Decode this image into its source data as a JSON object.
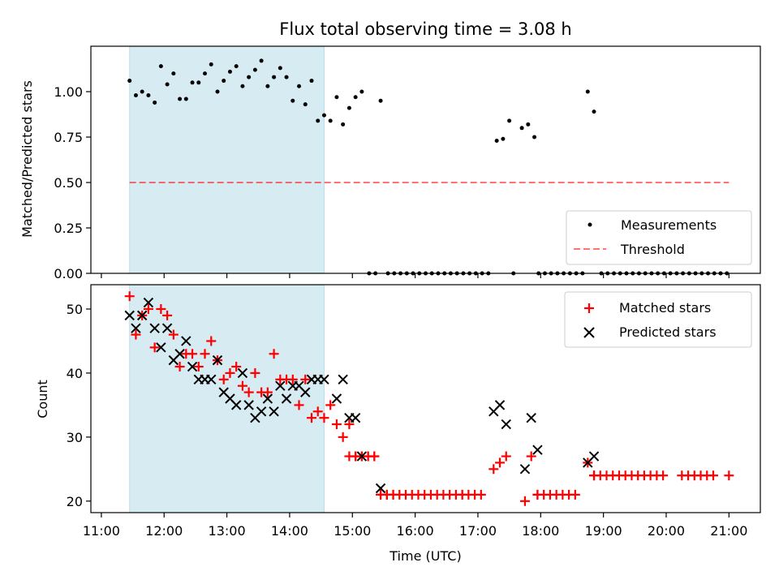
{
  "title": "Flux total observing time = 3.08 h",
  "colors": {
    "shade": "#add8e6",
    "threshold": "#ff0000",
    "matched": "#ff0000",
    "predicted": "#000000",
    "measurement": "#000000"
  },
  "chart_data": [
    {
      "type": "scatter",
      "ylabel": "Matched/Predicted stars",
      "xlabel": "",
      "xlim": [
        "10:50",
        "21:30"
      ],
      "ylim": [
        0,
        1.25
      ],
      "yticks": [
        0,
        0.25,
        0.5,
        0.75,
        1.0
      ],
      "ytick_labels": [
        "0.00",
        "0.25",
        "0.50",
        "0.75",
        "1.00"
      ],
      "shaded_span": [
        "11:27",
        "14:33"
      ],
      "legend": {
        "placement": "lower right",
        "entries": [
          "Measurements",
          "Threshold"
        ]
      },
      "threshold": {
        "name": "Threshold",
        "y": 0.5,
        "x_range": [
          "11:27",
          "21:00"
        ],
        "style": "dashed"
      },
      "series": [
        {
          "name": "Measurements",
          "marker": "dot",
          "points": [
            [
              "11:27",
              1.06
            ],
            [
              "11:33",
              0.98
            ],
            [
              "11:39",
              1.0
            ],
            [
              "11:45",
              0.98
            ],
            [
              "11:51",
              0.94
            ],
            [
              "11:57",
              1.14
            ],
            [
              "12:03",
              1.04
            ],
            [
              "12:09",
              1.1
            ],
            [
              "12:15",
              0.96
            ],
            [
              "12:21",
              0.96
            ],
            [
              "12:27",
              1.05
            ],
            [
              "12:33",
              1.05
            ],
            [
              "12:39",
              1.1
            ],
            [
              "12:45",
              1.15
            ],
            [
              "12:51",
              1.0
            ],
            [
              "12:57",
              1.06
            ],
            [
              "13:03",
              1.11
            ],
            [
              "13:09",
              1.14
            ],
            [
              "13:15",
              1.03
            ],
            [
              "13:21",
              1.08
            ],
            [
              "13:27",
              1.12
            ],
            [
              "13:33",
              1.17
            ],
            [
              "13:39",
              1.03
            ],
            [
              "13:45",
              1.08
            ],
            [
              "13:51",
              1.13
            ],
            [
              "13:57",
              1.08
            ],
            [
              "14:03",
              0.95
            ],
            [
              "14:09",
              1.03
            ],
            [
              "14:15",
              0.93
            ],
            [
              "14:21",
              1.06
            ],
            [
              "14:27",
              0.84
            ],
            [
              "14:33",
              0.87
            ],
            [
              "14:39",
              0.84
            ],
            [
              "14:45",
              0.97
            ],
            [
              "14:51",
              0.82
            ],
            [
              "14:57",
              0.91
            ],
            [
              "15:03",
              0.97
            ],
            [
              "15:09",
              1.0
            ],
            [
              "15:27",
              0.95
            ],
            [
              "17:18",
              0.73
            ],
            [
              "17:24",
              0.74
            ],
            [
              "17:30",
              0.84
            ],
            [
              "17:42",
              0.8
            ],
            [
              "17:48",
              0.82
            ],
            [
              "17:54",
              0.75
            ],
            [
              "18:45",
              1.0
            ],
            [
              "18:51",
              0.89
            ]
          ],
          "zero_points_range": [
            "14:40",
            "21:00"
          ]
        }
      ]
    },
    {
      "type": "scatter",
      "ylabel": "Count",
      "xlabel": "Time (UTC)",
      "xlim": [
        "10:50",
        "21:30"
      ],
      "ylim": [
        18.2,
        53.8
      ],
      "yticks": [
        20,
        30,
        40,
        50
      ],
      "ytick_labels": [
        "20",
        "30",
        "40",
        "50"
      ],
      "xticks": [
        "11:00",
        "12:00",
        "13:00",
        "14:00",
        "15:00",
        "16:00",
        "17:00",
        "18:00",
        "19:00",
        "20:00",
        "21:00"
      ],
      "shaded_span": [
        "11:27",
        "14:33"
      ],
      "legend": {
        "placement": "upper right",
        "entries": [
          "Matched stars",
          "Predicted stars"
        ]
      },
      "series": [
        {
          "name": "Matched stars",
          "marker": "plus",
          "points": [
            [
              "11:27",
              52
            ],
            [
              "11:33",
              46
            ],
            [
              "11:39",
              49
            ],
            [
              "11:45",
              50
            ],
            [
              "11:51",
              44
            ],
            [
              "11:57",
              50
            ],
            [
              "12:03",
              49
            ],
            [
              "12:09",
              46
            ],
            [
              "12:15",
              41
            ],
            [
              "12:21",
              43
            ],
            [
              "12:27",
              43
            ],
            [
              "12:33",
              41
            ],
            [
              "12:39",
              43
            ],
            [
              "12:45",
              45
            ],
            [
              "12:51",
              42
            ],
            [
              "12:57",
              39
            ],
            [
              "13:03",
              40
            ],
            [
              "13:09",
              41
            ],
            [
              "13:15",
              38
            ],
            [
              "13:21",
              37
            ],
            [
              "13:27",
              40
            ],
            [
              "13:33",
              37
            ],
            [
              "13:39",
              37
            ],
            [
              "13:45",
              43
            ],
            [
              "13:51",
              39
            ],
            [
              "13:57",
              39
            ],
            [
              "14:03",
              39
            ],
            [
              "14:09",
              35
            ],
            [
              "14:15",
              39
            ],
            [
              "14:21",
              33
            ],
            [
              "14:27",
              34
            ],
            [
              "14:33",
              33
            ],
            [
              "14:39",
              35
            ],
            [
              "14:45",
              32
            ],
            [
              "14:51",
              30
            ],
            [
              "14:57",
              32
            ],
            [
              "15:03",
              27
            ],
            [
              "15:09",
              27
            ],
            [
              "15:15",
              27
            ],
            [
              "15:21",
              27
            ],
            [
              "15:27",
              21
            ],
            [
              "15:33",
              21
            ],
            [
              "15:39",
              21
            ],
            [
              "16:45",
              21
            ],
            [
              "17:15",
              25
            ],
            [
              "17:21",
              26
            ],
            [
              "17:27",
              27
            ],
            [
              "17:45",
              20
            ],
            [
              "17:51",
              27
            ],
            [
              "17:57",
              21
            ],
            [
              "18:45",
              26
            ],
            [
              "18:51",
              24
            ],
            [
              "21:00",
              24
            ]
          ],
          "flat_runs": [
            {
              "x_range": [
                "14:57",
                "15:21"
              ],
              "y": 27
            },
            {
              "x_range": [
                "15:27",
                "17:06"
              ],
              "y": 21
            },
            {
              "x_range": [
                "17:57",
                "18:33"
              ],
              "y": 21
            },
            {
              "x_range": [
                "18:51",
                "19:57"
              ],
              "y": 24
            },
            {
              "x_range": [
                "20:15",
                "20:48"
              ],
              "y": 24
            }
          ]
        },
        {
          "name": "Predicted stars",
          "marker": "x",
          "points": [
            [
              "11:27",
              49
            ],
            [
              "11:33",
              47
            ],
            [
              "11:39",
              49
            ],
            [
              "11:45",
              51
            ],
            [
              "11:51",
              47
            ],
            [
              "11:57",
              44
            ],
            [
              "12:03",
              47
            ],
            [
              "12:09",
              42
            ],
            [
              "12:15",
              43
            ],
            [
              "12:21",
              45
            ],
            [
              "12:27",
              41
            ],
            [
              "12:33",
              39
            ],
            [
              "12:39",
              39
            ],
            [
              "12:45",
              39
            ],
            [
              "12:51",
              42
            ],
            [
              "12:57",
              37
            ],
            [
              "13:03",
              36
            ],
            [
              "13:09",
              35
            ],
            [
              "13:15",
              40
            ],
            [
              "13:21",
              35
            ],
            [
              "13:27",
              33
            ],
            [
              "13:33",
              34
            ],
            [
              "13:39",
              36
            ],
            [
              "13:45",
              34
            ],
            [
              "13:51",
              38
            ],
            [
              "13:57",
              36
            ],
            [
              "14:03",
              38
            ],
            [
              "14:09",
              38
            ],
            [
              "14:15",
              37
            ],
            [
              "14:21",
              39
            ],
            [
              "14:27",
              39
            ],
            [
              "14:33",
              39
            ],
            [
              "14:45",
              36
            ],
            [
              "14:51",
              39
            ],
            [
              "14:57",
              33
            ],
            [
              "15:03",
              33
            ],
            [
              "15:09",
              27
            ],
            [
              "15:27",
              22
            ],
            [
              "17:15",
              34
            ],
            [
              "17:21",
              35
            ],
            [
              "17:27",
              32
            ],
            [
              "17:45",
              25
            ],
            [
              "17:51",
              33
            ],
            [
              "17:57",
              28
            ],
            [
              "18:45",
              26
            ],
            [
              "18:51",
              27
            ]
          ]
        }
      ]
    }
  ],
  "legend": {
    "top": {
      "measurements": "Measurements",
      "threshold": "Threshold"
    },
    "bottom": {
      "matched": "Matched stars",
      "predicted": "Predicted stars"
    }
  }
}
